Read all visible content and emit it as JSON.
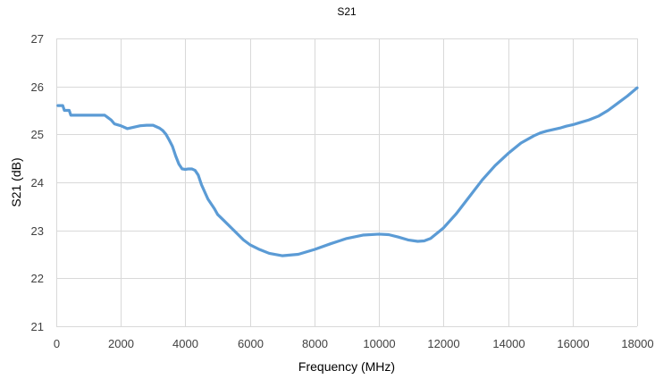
{
  "chart_data": {
    "type": "line",
    "title": "S21",
    "xlabel": "Frequency (MHz)",
    "ylabel": "S21 (dB)",
    "xlim": [
      0,
      18000
    ],
    "ylim": [
      21,
      27
    ],
    "xticks": [
      0,
      2000,
      4000,
      6000,
      8000,
      10000,
      12000,
      14000,
      16000,
      18000
    ],
    "yticks": [
      21,
      22,
      23,
      24,
      25,
      26,
      27
    ],
    "xtick_labels": [
      "0",
      "2000",
      "4000",
      "6000",
      "8000",
      "10000",
      "12000",
      "14000",
      "16000",
      "18000"
    ],
    "ytick_labels": [
      "21",
      "22",
      "23",
      "24",
      "25",
      "26",
      "27"
    ],
    "grid": true,
    "legend": false,
    "line_color": "#5b9bd5",
    "series": [
      {
        "x": [
          50,
          100,
          200,
          250,
          300,
          400,
          450,
          500,
          600,
          800,
          1000,
          1200,
          1400,
          1500,
          1600,
          1700,
          1800,
          2000,
          2200,
          2400,
          2600,
          2800,
          3000,
          3100,
          3200,
          3300,
          3400,
          3500,
          3600,
          3700,
          3800,
          3900,
          4000,
          4100,
          4200,
          4300,
          4400,
          4500,
          4600,
          4700,
          4800,
          4900,
          5000,
          5200,
          5500,
          5800,
          6000,
          6300,
          6600,
          7000,
          7500,
          8000,
          8500,
          9000,
          9500,
          10000,
          10300,
          10600,
          10900,
          11200,
          11400,
          11600,
          12000,
          12400,
          12800,
          13200,
          13600,
          14000,
          14400,
          14800,
          15000,
          15200,
          15400,
          15600,
          15800,
          16000,
          16200,
          16500,
          16800,
          17100,
          17400,
          17700,
          18000
        ],
        "y": [
          25.6,
          25.6,
          25.6,
          25.5,
          25.5,
          25.5,
          25.4,
          25.4,
          25.4,
          25.4,
          25.4,
          25.4,
          25.4,
          25.4,
          25.35,
          25.3,
          25.22,
          25.18,
          25.12,
          25.15,
          25.18,
          25.19,
          25.19,
          25.16,
          25.13,
          25.08,
          25.0,
          24.88,
          24.75,
          24.55,
          24.38,
          24.28,
          24.27,
          24.28,
          24.28,
          24.25,
          24.15,
          23.95,
          23.8,
          23.65,
          23.55,
          23.45,
          23.33,
          23.2,
          23.0,
          22.8,
          22.7,
          22.6,
          22.52,
          22.47,
          22.5,
          22.6,
          22.72,
          22.83,
          22.9,
          22.92,
          22.91,
          22.86,
          22.8,
          22.77,
          22.78,
          22.83,
          23.05,
          23.35,
          23.7,
          24.05,
          24.35,
          24.6,
          24.82,
          24.97,
          25.03,
          25.07,
          25.1,
          25.13,
          25.17,
          25.2,
          25.24,
          25.3,
          25.38,
          25.5,
          25.65,
          25.8,
          25.97
        ]
      }
    ]
  }
}
